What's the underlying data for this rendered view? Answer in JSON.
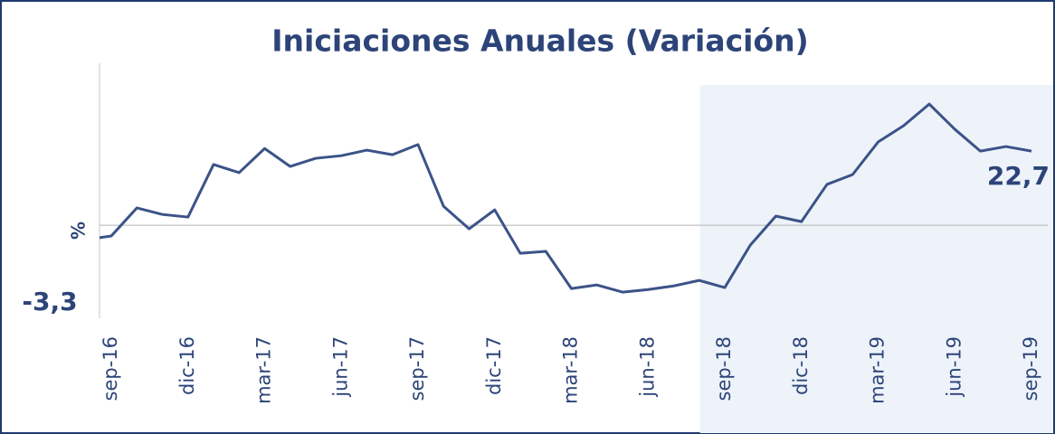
{
  "chart_data": {
    "type": "line",
    "title": "Iniciaciones Anuales (Variación)",
    "y_label": "%",
    "categories": [
      null,
      "sep-16",
      null,
      null,
      "dic-16",
      null,
      null,
      "mar-17",
      null,
      null,
      "jun-17",
      null,
      null,
      "sep-17",
      null,
      null,
      "dic-17",
      null,
      null,
      "mar-18",
      null,
      null,
      "jun-18",
      null,
      null,
      "sep-18",
      null,
      null,
      "dic-18",
      null,
      null,
      "mar-19",
      null,
      null,
      "jun-19",
      null,
      null,
      "sep-19"
    ],
    "series": [
      {
        "name": null,
        "color": "#3b5388",
        "values": [
          -4.4,
          -3.3,
          5.3,
          3.3,
          2.5,
          18.6,
          16.1,
          23.5,
          18.0,
          20.5,
          21.3,
          23.0,
          21.6,
          24.7,
          5.8,
          -1.1,
          4.7,
          -8.6,
          -8.0,
          -19.4,
          -18.3,
          -20.5,
          -19.7,
          -18.6,
          -16.9,
          -19.1,
          -6.1,
          2.8,
          1.1,
          12.5,
          15.5,
          25.5,
          30.5,
          37.1,
          29.4,
          22.7,
          24.1,
          22.7
        ],
        "value_labels": [
          null,
          "-3,3",
          null,
          null,
          null,
          null,
          null,
          null,
          null,
          null,
          null,
          null,
          null,
          null,
          null,
          null,
          null,
          null,
          null,
          null,
          null,
          null,
          null,
          null,
          null,
          null,
          null,
          null,
          null,
          null,
          null,
          null,
          null,
          null,
          null,
          null,
          null,
          "22,7"
        ]
      }
    ],
    "ylim": [
      -28.5,
      49.6
    ],
    "shaded_from": 24
  }
}
